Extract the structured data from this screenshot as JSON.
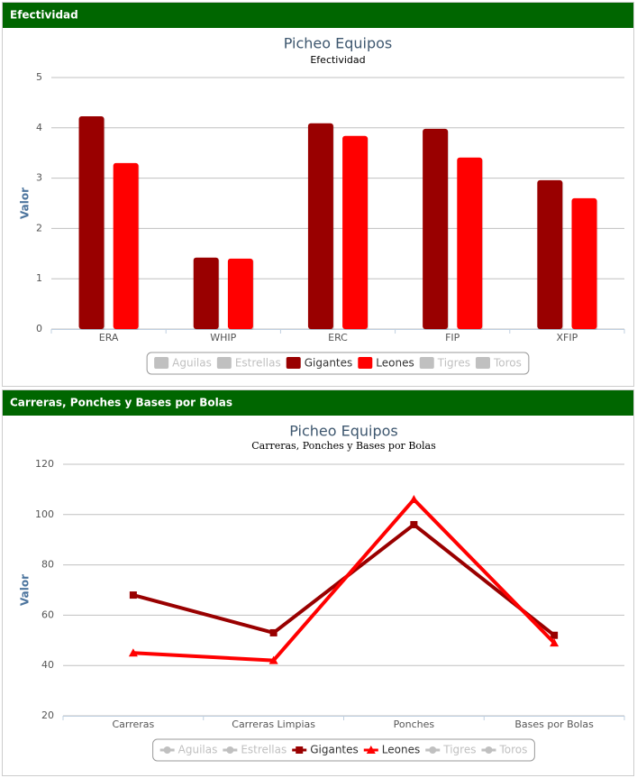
{
  "headers": [
    "Efectividad",
    "Carreras, Ponches y Bases por Bolas"
  ],
  "chart_data": [
    {
      "type": "bar",
      "title": "Picheo Equipos",
      "subtitle": "Efectividad",
      "y_label": "Valor",
      "categories": [
        "ERA",
        "WHIP",
        "ERC",
        "FIP",
        "XFIP"
      ],
      "series": [
        {
          "name": "Aguilas",
          "color": "#c0c0c0",
          "visible": false,
          "values": [
            null,
            null,
            null,
            null,
            null
          ]
        },
        {
          "name": "Estrellas",
          "color": "#c0c0c0",
          "visible": false,
          "values": [
            null,
            null,
            null,
            null,
            null
          ]
        },
        {
          "name": "Gigantes",
          "color": "#990000",
          "visible": true,
          "values": [
            4.23,
            1.42,
            4.09,
            3.98,
            2.96
          ]
        },
        {
          "name": "Leones",
          "color": "#ff0000",
          "visible": true,
          "values": [
            3.3,
            1.4,
            3.84,
            3.41,
            2.6
          ]
        },
        {
          "name": "Tigres",
          "color": "#c0c0c0",
          "visible": false,
          "values": [
            null,
            null,
            null,
            null,
            null
          ]
        },
        {
          "name": "Toros",
          "color": "#c0c0c0",
          "visible": false,
          "values": [
            null,
            null,
            null,
            null,
            null
          ]
        }
      ],
      "ylim": [
        0,
        5
      ],
      "yticks": [
        0,
        1,
        2,
        3,
        4,
        5
      ],
      "grid": true,
      "legend": "bottom"
    },
    {
      "type": "line",
      "title": "Picheo Equipos",
      "subtitle": "Carreras, Ponches y Bases por Bolas",
      "y_label": "Valor",
      "categories": [
        "Carreras",
        "Carreras Limpias",
        "Ponches",
        "Bases por Bolas"
      ],
      "series": [
        {
          "name": "Aguilas",
          "color": "#c0c0c0",
          "visible": false,
          "values": [
            null,
            null,
            null,
            null
          ]
        },
        {
          "name": "Estrellas",
          "color": "#c0c0c0",
          "visible": false,
          "values": [
            null,
            null,
            null,
            null
          ]
        },
        {
          "name": "Gigantes",
          "color": "#990000",
          "visible": true,
          "marker": "square",
          "values": [
            68,
            53,
            96,
            52
          ]
        },
        {
          "name": "Leones",
          "color": "#ff0000",
          "visible": true,
          "marker": "triangle",
          "values": [
            45,
            42,
            106,
            49
          ]
        },
        {
          "name": "Tigres",
          "color": "#c0c0c0",
          "visible": false,
          "values": [
            null,
            null,
            null,
            null
          ]
        },
        {
          "name": "Toros",
          "color": "#c0c0c0",
          "visible": false,
          "values": [
            null,
            null,
            null,
            null
          ]
        }
      ],
      "ylim": [
        20,
        120
      ],
      "yticks": [
        20,
        40,
        60,
        80,
        100,
        120
      ],
      "grid": true,
      "legend": "bottom"
    }
  ]
}
